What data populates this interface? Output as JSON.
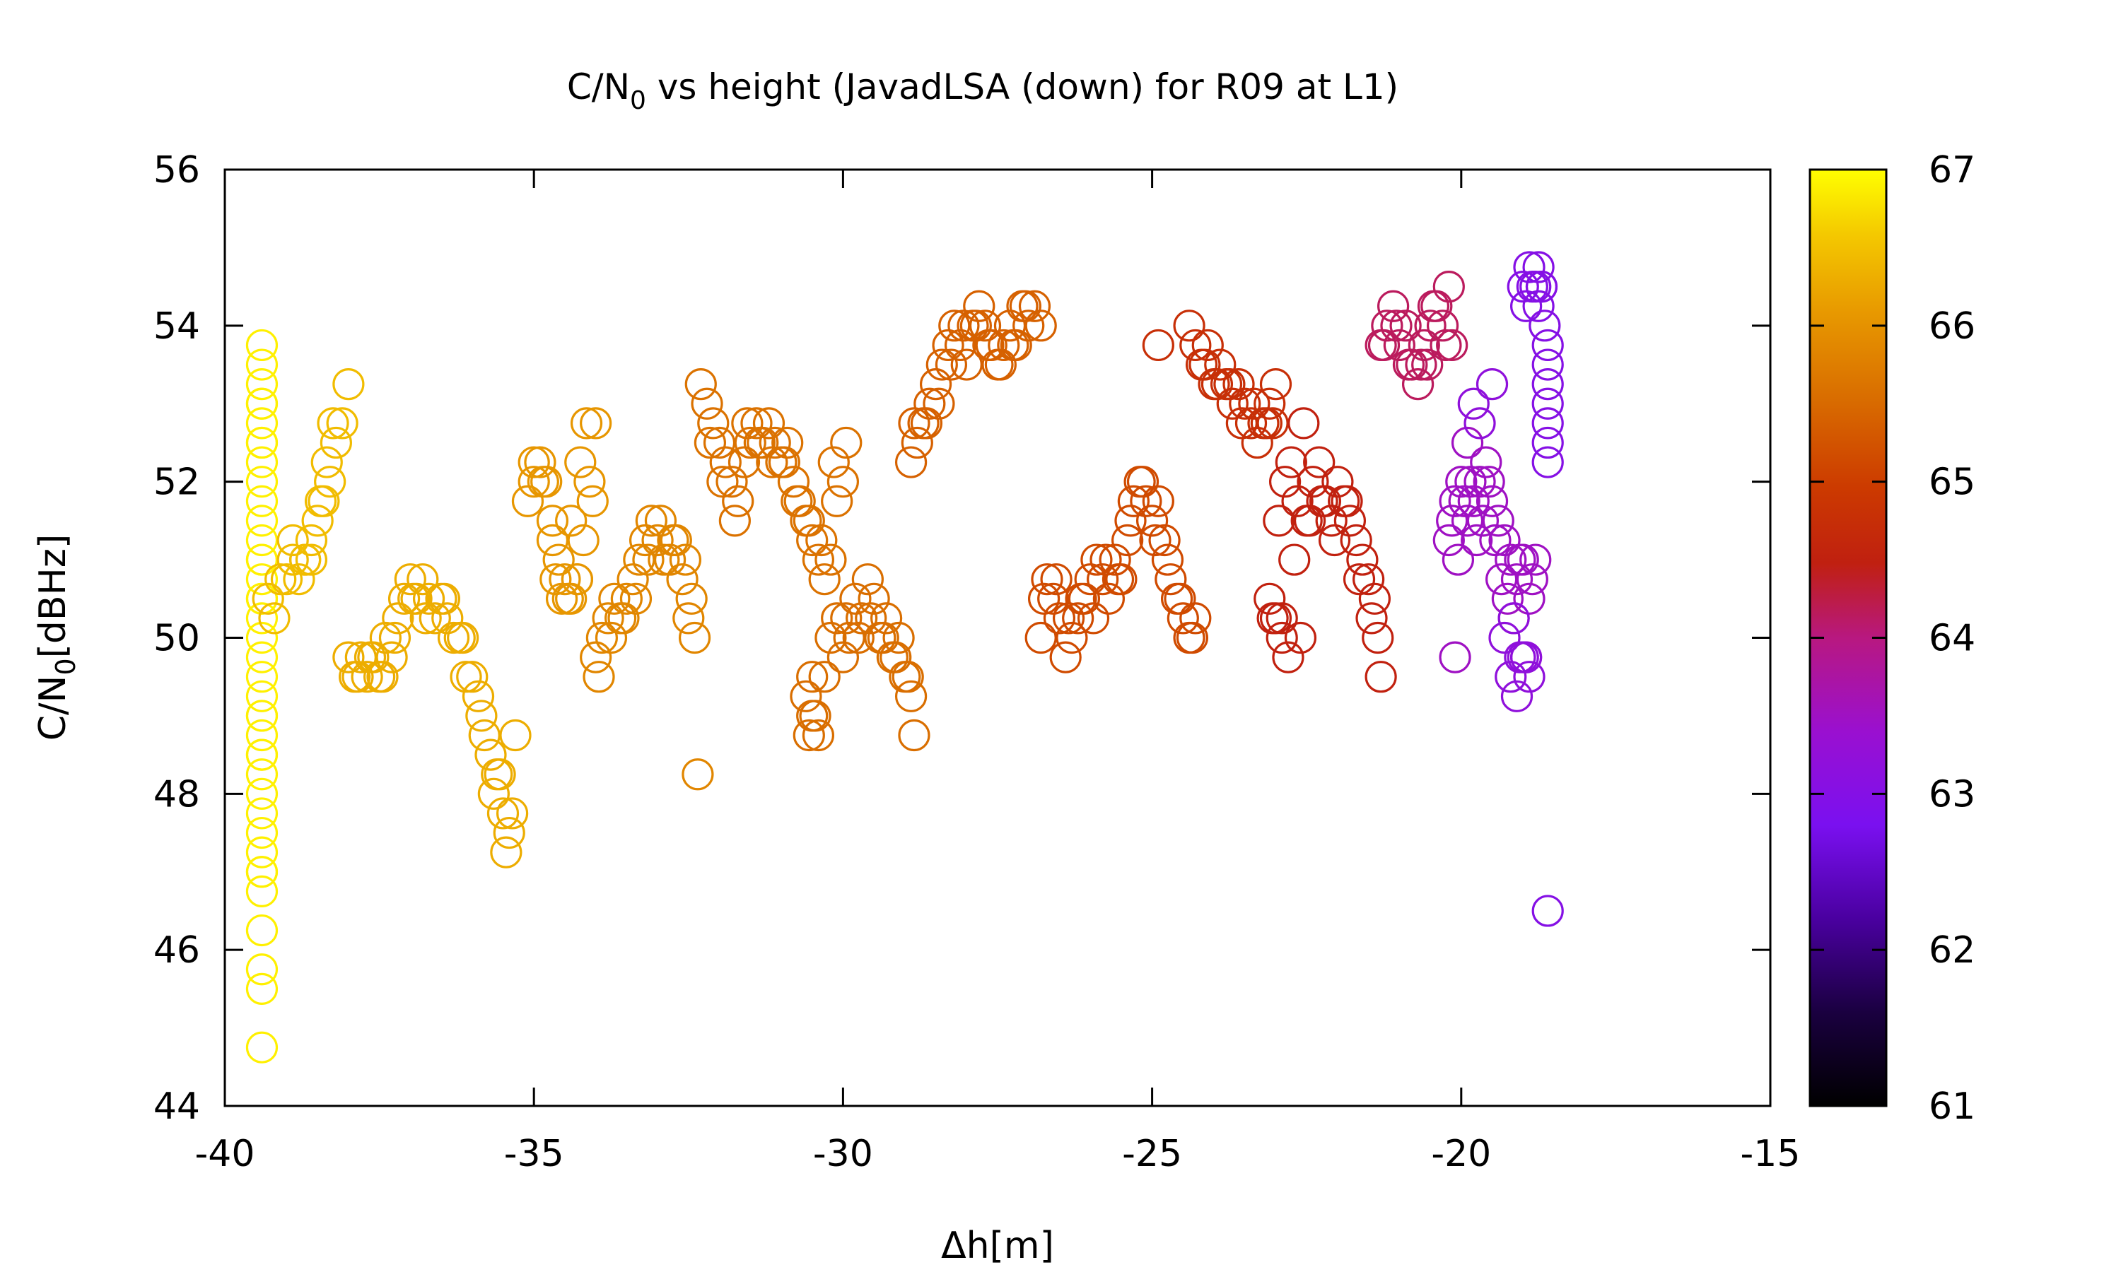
{
  "chart_data": {
    "type": "scatter",
    "title": "C/N",
    "title_subscript": "0",
    "title_rest": " vs height (JavadLSA (down) for R09 at L1)",
    "xlabel": "Δh[m]",
    "ylabel": "C/N",
    "ylabel_subscript": "0",
    "ylabel_rest": "[dBHz]",
    "xlim": [
      -40,
      -15
    ],
    "ylim": [
      44,
      56
    ],
    "x_ticks": [
      -40,
      -35,
      -30,
      -25,
      -20,
      -15
    ],
    "y_ticks": [
      44,
      46,
      48,
      50,
      52,
      54,
      56
    ],
    "colorbar": {
      "range": [
        61,
        67
      ],
      "ticks": [
        61,
        62,
        63,
        64,
        65,
        66,
        67
      ],
      "palette": "black-purple-red-orange-yellow"
    },
    "marker": "open-circle",
    "grid": false,
    "clusters": [
      {
        "x": [
          -39.4,
          -39.4,
          -39.4,
          -39.4,
          -39.4,
          -39.4,
          -39.4,
          -39.4,
          -39.4,
          -39.4,
          -39.4,
          -39.4,
          -39.4,
          -39.4,
          -39.4,
          -39.4,
          -39.4,
          -39.4,
          -39.4,
          -39.4,
          -39.4,
          -39.4,
          -39.4,
          -39.4,
          -39.4,
          -39.4,
          -39.4,
          -39.4,
          -39.4,
          -39.4,
          -39.4,
          -39.4,
          -39.4,
          -39.4,
          -39.4,
          -39.4,
          -39.4,
          -39.4,
          -39.4,
          -39.4
        ],
        "y": [
          53.75,
          53.5,
          53.25,
          53.0,
          52.75,
          52.5,
          52.25,
          52.0,
          51.75,
          51.5,
          51.25,
          51.0,
          50.75,
          50.5,
          50.25,
          50.0,
          49.75,
          49.5,
          49.25,
          49.0,
          48.75,
          48.5,
          48.25,
          48.0,
          47.75,
          47.5,
          47.25,
          47.0,
          46.75,
          46.25,
          45.75,
          45.5,
          44.75,
          50.5,
          51.0,
          52.5,
          53.0,
          49.0,
          48.5,
          47.0
        ],
        "c": 67.0
      },
      {
        "x": [
          -39.3,
          -39.1,
          -38.9,
          -38.7,
          -38.6,
          -38.5,
          -38.4,
          -38.3,
          -38.2,
          -38.1,
          -38.0,
          -39.0,
          -38.8,
          -38.6,
          -38.9,
          -38.7,
          -39.2,
          -38.35,
          -38.25,
          -38.45
        ],
        "y": [
          50.5,
          50.75,
          51.0,
          51.0,
          51.25,
          51.5,
          51.75,
          52.0,
          52.5,
          52.75,
          53.25,
          50.75,
          50.75,
          51.0,
          51.25,
          51.0,
          50.25,
          52.25,
          52.75,
          51.75
        ],
        "c": 66.45
      },
      {
        "x": [
          -38.0,
          -37.9,
          -37.8,
          -37.7,
          -37.6,
          -37.5,
          -37.4,
          -37.3,
          -37.2,
          -37.1,
          -37.0,
          -36.9,
          -36.8,
          -36.7,
          -36.6,
          -36.5,
          -36.4,
          -36.3,
          -36.2,
          -36.1,
          -36.0,
          -35.9,
          -35.8,
          -35.7,
          -35.6,
          -35.5,
          -35.4,
          -35.3,
          -37.85,
          -37.65,
          -37.45,
          -37.25,
          -36.95,
          -36.75,
          -36.45,
          -36.15,
          -35.85,
          -35.65,
          -35.45,
          -35.55,
          -35.35
        ],
        "y": [
          49.75,
          49.5,
          49.75,
          49.5,
          49.75,
          49.5,
          50.0,
          49.75,
          50.25,
          50.5,
          50.75,
          50.5,
          50.75,
          50.5,
          50.25,
          50.5,
          50.25,
          50.0,
          50.0,
          49.5,
          49.5,
          49.25,
          48.75,
          48.5,
          48.25,
          47.75,
          47.5,
          48.75,
          49.5,
          49.75,
          49.5,
          50.0,
          50.5,
          50.25,
          50.5,
          50.0,
          49.0,
          48.0,
          47.25,
          48.25,
          47.75
        ],
        "c": 66.3
      },
      {
        "x": [
          -35.1,
          -35.0,
          -34.9,
          -34.8,
          -34.7,
          -34.6,
          -34.5,
          -34.4,
          -34.3,
          -34.2,
          -34.1,
          -34.0,
          -35.0,
          -34.85,
          -34.7,
          -34.55,
          -34.4,
          -34.25,
          -34.15,
          -34.05,
          -34.45,
          -34.65,
          -34.3
        ],
        "y": [
          51.75,
          52.0,
          52.25,
          52.0,
          51.5,
          51.0,
          50.75,
          50.5,
          50.75,
          51.25,
          52.0,
          52.75,
          52.25,
          52.0,
          51.25,
          50.5,
          51.5,
          52.25,
          52.75,
          51.75,
          50.5,
          50.75,
          50.75
        ],
        "c": 66.05
      },
      {
        "x": [
          -34.0,
          -33.9,
          -33.8,
          -33.7,
          -33.6,
          -33.5,
          -33.4,
          -33.3,
          -33.2,
          -33.1,
          -33.0,
          -32.9,
          -32.8,
          -32.7,
          -32.6,
          -32.5,
          -32.4,
          -32.35,
          -32.45,
          -32.55,
          -33.95,
          -33.75,
          -33.55,
          -33.35,
          -33.15,
          -32.95,
          -32.75
        ],
        "y": [
          49.75,
          50.0,
          50.25,
          50.5,
          50.25,
          50.5,
          50.75,
          51.0,
          51.25,
          51.5,
          51.25,
          51.0,
          51.0,
          51.25,
          50.75,
          50.25,
          50.0,
          48.25,
          50.5,
          51.0,
          49.5,
          50.0,
          50.25,
          50.5,
          51.0,
          51.5,
          51.25
        ],
        "c": 65.85
      },
      {
        "x": [
          -32.3,
          -32.2,
          -32.1,
          -32.0,
          -31.9,
          -31.8,
          -31.7,
          -31.6,
          -31.5,
          -31.4,
          -31.3,
          -31.2,
          -31.1,
          -31.0,
          -30.9,
          -30.8,
          -30.7,
          -30.6,
          -30.5,
          -30.4,
          -30.3,
          -30.2,
          -30.1,
          -30.0,
          -32.15,
          -31.95,
          -31.75,
          -31.55,
          -31.35,
          -31.15,
          -30.95,
          -30.75,
          -30.55,
          -30.35,
          -30.15,
          -29.95
        ],
        "y": [
          53.25,
          53.0,
          52.75,
          52.5,
          52.25,
          52.0,
          51.75,
          52.25,
          52.5,
          52.75,
          52.5,
          52.75,
          52.5,
          52.25,
          52.5,
          52.0,
          51.75,
          51.5,
          51.25,
          51.0,
          50.75,
          51.0,
          51.75,
          52.0,
          52.5,
          52.0,
          51.5,
          52.75,
          52.5,
          52.25,
          52.25,
          51.75,
          51.5,
          51.25,
          52.25,
          52.5
        ],
        "c": 65.6
      },
      {
        "x": [
          -30.5,
          -30.6,
          -30.5,
          -30.4,
          -30.3,
          -30.2,
          -30.1,
          -30.0,
          -29.9,
          -29.8,
          -29.7,
          -29.6,
          -29.5,
          -29.4,
          -29.3,
          -29.2,
          -29.1,
          -29.0,
          -28.9,
          -28.85,
          -30.45,
          -30.55,
          -29.95,
          -29.75,
          -29.55,
          -29.35,
          -29.15,
          -28.95
        ],
        "y": [
          49.5,
          49.25,
          49.0,
          48.75,
          49.5,
          50.0,
          50.25,
          49.75,
          50.0,
          50.5,
          50.25,
          50.75,
          50.5,
          50.0,
          50.25,
          49.75,
          50.0,
          49.5,
          49.25,
          48.75,
          49.0,
          48.75,
          50.25,
          50.0,
          50.25,
          50.0,
          49.75,
          49.5
        ],
        "c": 65.55
      },
      {
        "x": [
          -28.9,
          -28.8,
          -28.7,
          -28.6,
          -28.5,
          -28.4,
          -28.3,
          -28.2,
          -28.1,
          -28.0,
          -27.9,
          -27.8,
          -27.7,
          -27.6,
          -27.5,
          -27.4,
          -27.3,
          -27.2,
          -27.1,
          -27.0,
          -26.9,
          -26.8,
          -28.85,
          -28.65,
          -28.45,
          -28.25,
          -28.05,
          -27.85,
          -27.65,
          -27.45,
          -27.25,
          -27.05
        ],
        "y": [
          52.25,
          52.5,
          52.75,
          53.0,
          53.25,
          53.5,
          53.75,
          54.0,
          53.75,
          53.5,
          54.0,
          54.25,
          54.0,
          53.75,
          53.5,
          53.75,
          54.0,
          53.75,
          54.25,
          54.0,
          54.25,
          54.0,
          52.75,
          52.75,
          53.0,
          53.5,
          54.0,
          54.0,
          53.75,
          53.5,
          53.75,
          54.25
        ],
        "c": 65.4
      },
      {
        "x": [
          -26.8,
          -26.7,
          -26.6,
          -26.5,
          -26.4,
          -26.3,
          -26.2,
          -26.1,
          -26.0,
          -25.9,
          -25.8,
          -25.7,
          -25.6,
          -25.5,
          -25.4,
          -25.3,
          -25.2,
          -25.1,
          -25.0,
          -24.9,
          -24.8,
          -24.7,
          -24.6,
          -24.5,
          -24.4,
          -24.3,
          -26.75,
          -26.55,
          -26.35,
          -26.15,
          -25.95,
          -25.75,
          -25.55,
          -25.35,
          -25.15,
          -24.95,
          -24.75,
          -24.55,
          -24.35
        ],
        "y": [
          50.0,
          50.75,
          50.5,
          50.25,
          49.75,
          50.0,
          50.25,
          50.5,
          50.75,
          51.0,
          50.75,
          50.5,
          51.0,
          50.75,
          51.25,
          51.75,
          52.0,
          51.75,
          51.5,
          51.75,
          51.25,
          50.75,
          50.5,
          50.25,
          50.0,
          50.25,
          50.5,
          50.75,
          50.25,
          50.5,
          50.25,
          51.0,
          50.75,
          51.5,
          52.0,
          51.25,
          51.0,
          50.5,
          50.0
        ],
        "c": 65.15
      },
      {
        "x": [
          -24.9,
          -24.4,
          -24.3,
          -24.2,
          -24.1,
          -24.0,
          -23.9,
          -23.8,
          -23.7,
          -23.6,
          -23.5,
          -23.4,
          -23.3,
          -23.2,
          -23.1,
          -23.0,
          -24.15,
          -23.95,
          -23.75,
          -23.55,
          -23.35,
          -23.15,
          -23.05
        ],
        "y": [
          53.75,
          54.0,
          53.75,
          53.5,
          53.75,
          53.25,
          53.5,
          53.25,
          53.0,
          53.25,
          53.0,
          52.75,
          52.5,
          52.75,
          53.0,
          53.25,
          53.5,
          53.25,
          53.25,
          52.75,
          53.0,
          52.75,
          52.75
        ],
        "c": 64.75
      },
      {
        "x": [
          -23.1,
          -23.0,
          -22.9,
          -22.8,
          -22.7,
          -22.6,
          -22.5,
          -22.4,
          -22.3,
          -22.2,
          -22.1,
          -22.0,
          -21.9,
          -21.8,
          -21.7,
          -21.6,
          -21.5,
          -21.4,
          -21.35,
          -21.3,
          -22.95,
          -22.85,
          -22.75,
          -22.65,
          -22.55,
          -22.45,
          -22.25,
          -22.05,
          -21.85,
          -21.65,
          -21.45,
          -23.05,
          -22.9
        ],
        "y": [
          50.5,
          50.25,
          50.0,
          49.75,
          51.0,
          50.0,
          51.5,
          52.0,
          52.25,
          51.75,
          51.5,
          52.0,
          51.75,
          51.5,
          51.25,
          51.0,
          50.75,
          50.5,
          50.0,
          49.5,
          51.5,
          52.0,
          52.25,
          51.75,
          52.75,
          51.5,
          51.75,
          51.25,
          51.75,
          50.75,
          50.25,
          50.25,
          50.25
        ],
        "c": 64.5
      },
      {
        "x": [
          -21.3,
          -21.2,
          -21.1,
          -21.0,
          -20.9,
          -20.8,
          -20.7,
          -20.6,
          -20.5,
          -20.4,
          -20.3,
          -20.2,
          -20.15,
          -21.25,
          -21.05,
          -20.85,
          -20.65,
          -20.45,
          -20.25,
          -20.55
        ],
        "y": [
          53.75,
          54.0,
          54.25,
          53.75,
          54.0,
          53.5,
          53.25,
          53.75,
          54.0,
          54.25,
          54.0,
          54.5,
          53.75,
          53.75,
          54.0,
          53.5,
          53.5,
          54.25,
          53.75,
          53.5
        ],
        "c": 64.15
      },
      {
        "x": [
          -20.2,
          -20.1,
          -20.0,
          -19.9,
          -19.8,
          -19.7,
          -19.6,
          -19.5,
          -19.4,
          -19.3,
          -19.2,
          -19.1,
          -19.0,
          -18.9,
          -18.8,
          -20.15,
          -20.05,
          -19.95,
          -19.85,
          -19.75,
          -19.65,
          -19.55,
          -19.45,
          -19.35,
          -19.25,
          -19.15,
          -19.05,
          -18.95,
          -18.85,
          -20.1,
          -19.9
        ],
        "y": [
          51.25,
          51.75,
          52.0,
          51.5,
          51.75,
          52.0,
          52.25,
          51.75,
          51.5,
          51.25,
          51.0,
          50.75,
          51.0,
          50.5,
          51.0,
          51.5,
          51.0,
          51.75,
          52.0,
          51.25,
          51.5,
          52.0,
          51.25,
          50.75,
          50.5,
          50.25,
          51.0,
          49.75,
          50.75,
          49.75,
          52.5
        ],
        "c": 63.5
      },
      {
        "x": [
          -19.8,
          -19.7,
          -19.5,
          -19.3,
          -19.2,
          -19.1,
          -19.0,
          -18.9,
          -19.15,
          -19.05,
          -18.95
        ],
        "y": [
          53.0,
          52.75,
          53.25,
          50.0,
          49.5,
          49.25,
          49.75,
          49.5,
          50.25,
          49.75,
          49.75
        ],
        "c": 63.2
      },
      {
        "x": [
          -19.0,
          -18.9,
          -18.8,
          -18.75,
          -18.7,
          -18.65,
          -18.6,
          -18.6,
          -18.6,
          -18.6,
          -18.6,
          -18.6,
          -18.6,
          -18.6,
          -18.85,
          -18.95,
          -18.75,
          -18.7
        ],
        "y": [
          54.5,
          54.75,
          54.5,
          54.25,
          54.5,
          54.0,
          53.75,
          53.5,
          53.25,
          53.0,
          52.75,
          52.5,
          52.25,
          46.5,
          54.5,
          54.25,
          54.75,
          54.5
        ],
        "c": 63.0
      }
    ]
  }
}
